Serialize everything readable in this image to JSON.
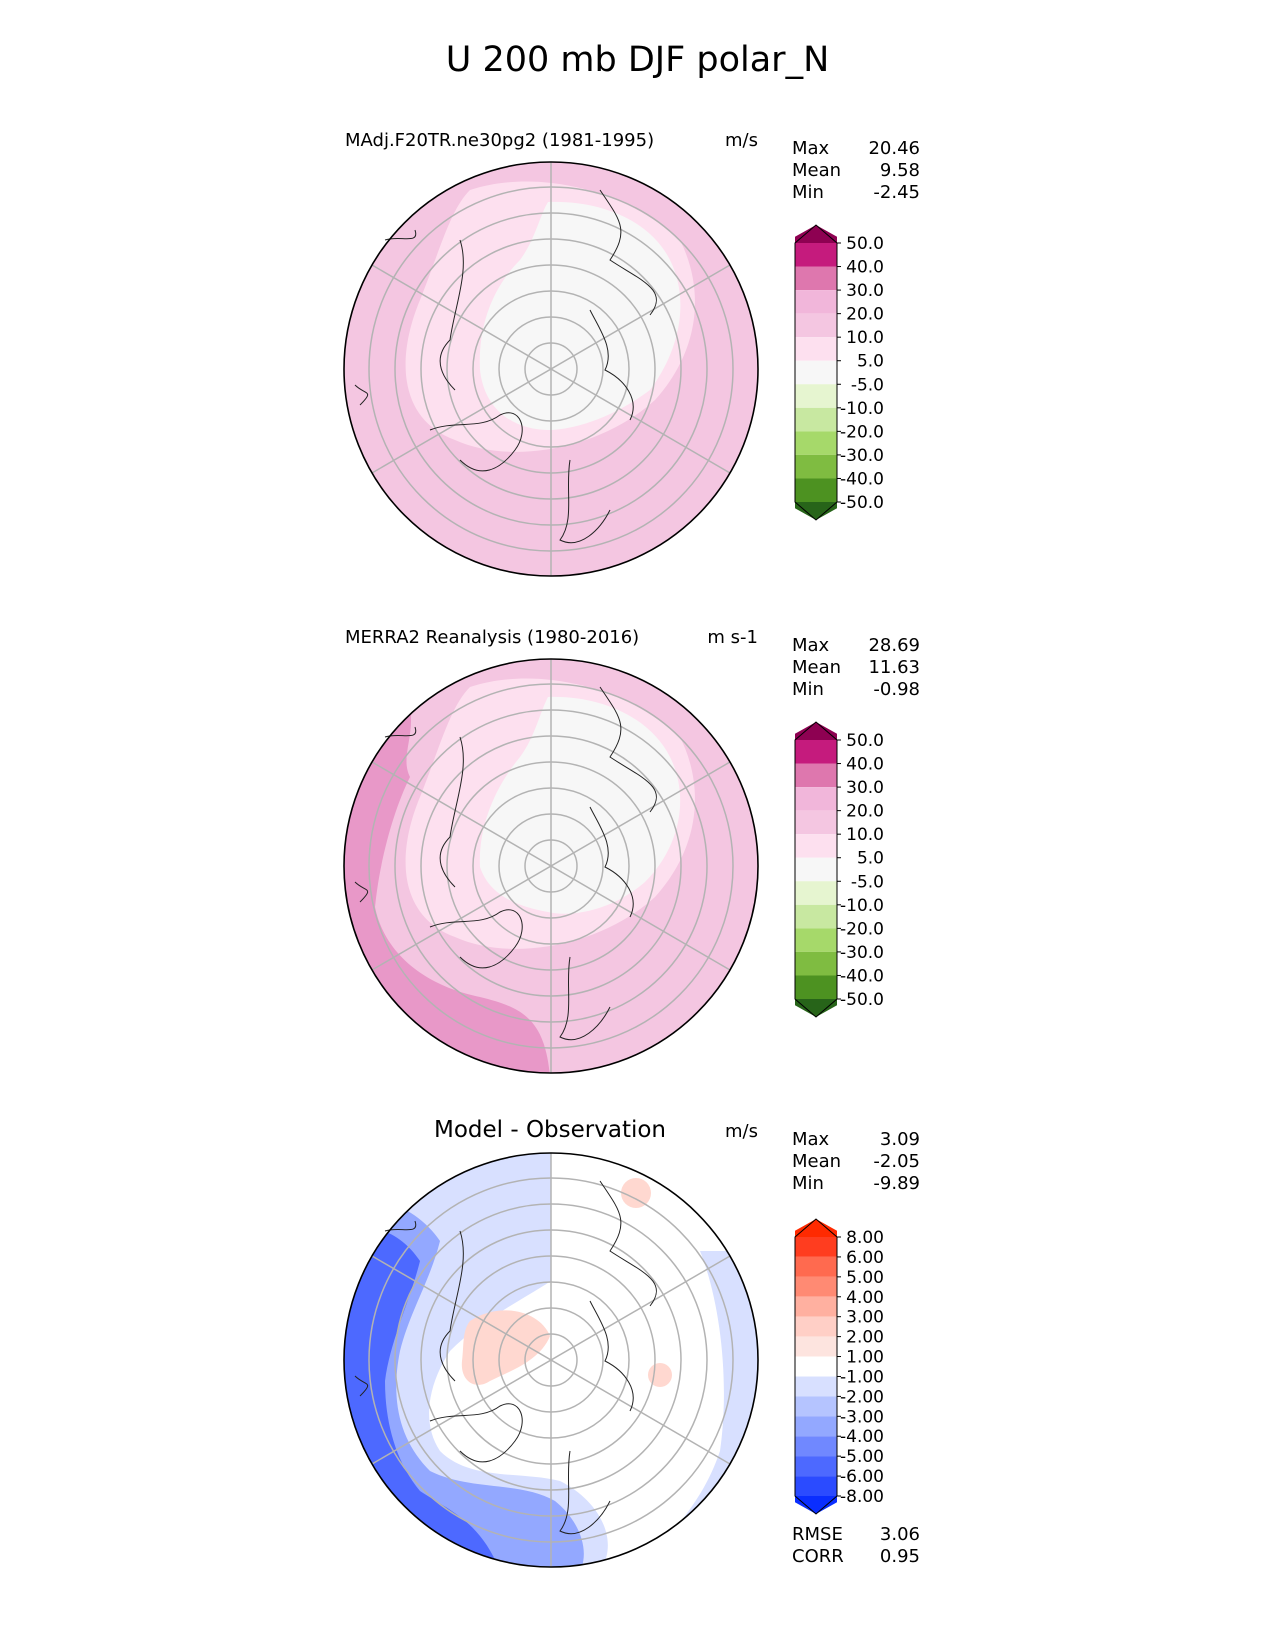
{
  "title": "U 200 mb DJF polar_N",
  "panels": [
    {
      "id": "model",
      "title": "MAdj.F20TR.ne30pg2 (1981-1995)",
      "units": "m/s",
      "stats": [
        {
          "label": "Max",
          "value": "20.46"
        },
        {
          "label": "Mean",
          "value": "9.58"
        },
        {
          "label": "Min",
          "value": "-2.45"
        }
      ],
      "colorbar": {
        "colors": [
          "#8e0152",
          "#c51b7d",
          "#de77ae",
          "#f1b6da",
          "#f4c6e1",
          "#fde0ef",
          "#f7f7f7",
          "#e6f5d0",
          "#c8e8a1",
          "#a6d96a",
          "#7fbc41",
          "#4d9221",
          "#276419"
        ],
        "labels": [
          "50.0",
          "40.0",
          "30.0",
          "20.0",
          "10.0",
          "5.0",
          "-5.0",
          "-10.0",
          "-20.0",
          "-30.0",
          "-40.0",
          "-50.0"
        ]
      }
    },
    {
      "id": "obs",
      "title": "MERRA2 Reanalysis (1980-2016)",
      "units": "m s-1",
      "stats": [
        {
          "label": "Max",
          "value": "28.69"
        },
        {
          "label": "Mean",
          "value": "11.63"
        },
        {
          "label": "Min",
          "value": "-0.98"
        }
      ],
      "colorbar": {
        "colors": [
          "#8e0152",
          "#c51b7d",
          "#de77ae",
          "#f1b6da",
          "#f4c6e1",
          "#fde0ef",
          "#f7f7f7",
          "#e6f5d0",
          "#c8e8a1",
          "#a6d96a",
          "#7fbc41",
          "#4d9221",
          "#276419"
        ],
        "labels": [
          "50.0",
          "40.0",
          "30.0",
          "20.0",
          "10.0",
          "5.0",
          "-5.0",
          "-10.0",
          "-20.0",
          "-30.0",
          "-40.0",
          "-50.0"
        ]
      }
    },
    {
      "id": "diff",
      "title": "Model - Observation",
      "units": "m/s",
      "stats": [
        {
          "label": "Max",
          "value": "3.09"
        },
        {
          "label": "Mean",
          "value": "-2.05"
        },
        {
          "label": "Min",
          "value": "-9.89"
        }
      ],
      "extra_stats": [
        {
          "label": "RMSE",
          "value": "3.06"
        },
        {
          "label": "CORR",
          "value": "0.95"
        }
      ],
      "colorbar": {
        "colors": [
          "#ff2a00",
          "#ff3d1f",
          "#ff6a4f",
          "#ff8a73",
          "#ffb0a0",
          "#ffcfc6",
          "#fde4df",
          "#ffffff",
          "#d8e0ff",
          "#b5c4ff",
          "#93a8ff",
          "#7088ff",
          "#4d69ff",
          "#2b4bff",
          "#0a2eff"
        ],
        "labels": [
          "8.00",
          "6.00",
          "5.00",
          "4.00",
          "3.00",
          "2.00",
          "1.00",
          "-1.00",
          "-2.00",
          "-3.00",
          "-4.00",
          "-5.00",
          "-6.00",
          "-8.00"
        ]
      }
    }
  ],
  "map_fills": {
    "model": {
      "outer": "#f4c6e1",
      "mid": "#fde0ef",
      "inner": "#f7f7f7"
    },
    "obs": {
      "outer": "#f4c6e1",
      "mid": "#fde0ef",
      "inner": "#f7f7f7",
      "jet": "#e898c8"
    },
    "diff": {
      "base": "#ffffff",
      "light": "#d8e0ff",
      "med": "#93a8ff",
      "strong": "#4d69ff",
      "deep": "#1f42ff",
      "warm": "#ffd8d0"
    }
  }
}
